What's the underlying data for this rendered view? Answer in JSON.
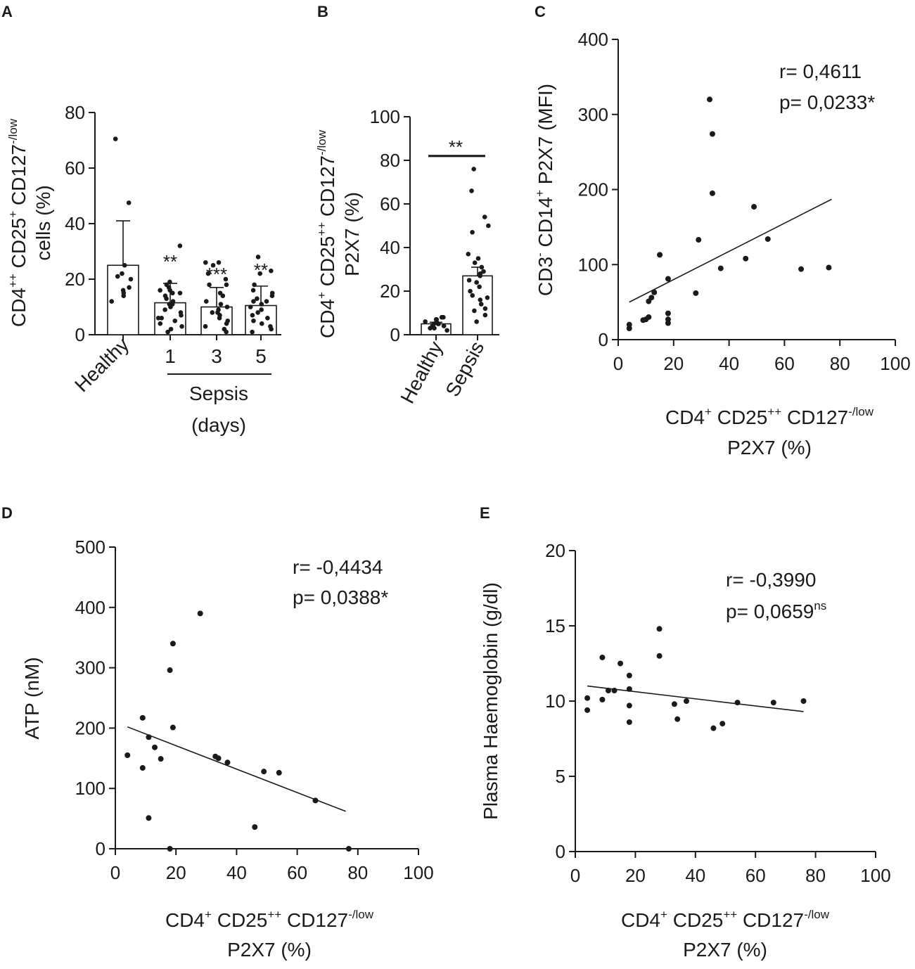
{
  "figure": {
    "panels": {
      "A": {
        "letter": "A",
        "ylabel_line1": "CD4++ CD25+ CD127-/low",
        "ylabel_line2": "cells (%)",
        "ylabel_line1_parts": [
          [
            "CD4",
            ""
          ],
          [
            "++",
            "sup"
          ],
          [
            " CD25",
            ""
          ],
          [
            "+",
            "sup"
          ],
          [
            " CD127",
            ""
          ],
          [
            "-/low",
            "sup"
          ]
        ],
        "yticks": [
          "0",
          "20",
          "40",
          "60",
          "80"
        ],
        "group_label": "Sepsis",
        "group_label2": "(days)"
      },
      "B": {
        "letter": "B",
        "ylabel_line1": "CD4+ CD25++ CD127-/low",
        "ylabel_line2": "P2X7 (%)",
        "ylabel_line1_parts": [
          [
            "CD4",
            ""
          ],
          [
            "+",
            "sup"
          ],
          [
            " CD25",
            ""
          ],
          [
            "++",
            "sup"
          ],
          [
            " CD127",
            ""
          ],
          [
            "-/low",
            "sup"
          ]
        ],
        "yticks": [
          "0",
          "20",
          "40",
          "60",
          "80",
          "100"
        ]
      },
      "C": {
        "letter": "C",
        "ylabel": "CD3- CD14+ P2X7 (MFI)",
        "ylabel_parts": [
          [
            "CD3",
            ""
          ],
          [
            "-",
            "sup"
          ],
          [
            " CD14",
            ""
          ],
          [
            "+",
            "sup"
          ],
          [
            " P2X7 (MFI)",
            ""
          ]
        ],
        "xlabel_line1": "CD4+ CD25++ CD127-/low",
        "xlabel_line2": "P2X7 (%)",
        "r_text": "r= 0,4611",
        "p_text": "p= 0,0233*",
        "xticks": [
          "0",
          "20",
          "40",
          "60",
          "80",
          "100"
        ],
        "yticks": [
          "0",
          "100",
          "200",
          "300",
          "400"
        ]
      },
      "D": {
        "letter": "D",
        "ylabel": "ATP (nM)",
        "xlabel_line1": "CD4+ CD25++ CD127-/low",
        "xlabel_line2": "P2X7 (%)",
        "r_text": "r= -0,4434",
        "p_text": "p= 0,0388*",
        "xticks": [
          "0",
          "20",
          "40",
          "60",
          "80",
          "100"
        ],
        "yticks": [
          "0",
          "100",
          "200",
          "300",
          "400",
          "500"
        ]
      },
      "E": {
        "letter": "E",
        "ylabel": "Plasma Haemoglobin (g/dl)",
        "xlabel_line1": "CD4+ CD25++ CD127-/low",
        "xlabel_line2": "P2X7 (%)",
        "r_text": "r= -0,3990",
        "p_text_main": "p= 0,0659",
        "p_text_sup": "ns",
        "xticks": [
          "0",
          "20",
          "40",
          "60",
          "80",
          "100"
        ],
        "yticks": [
          "0",
          "5",
          "10",
          "15",
          "20"
        ]
      }
    }
  },
  "chart_data": [
    {
      "id": "A",
      "type": "bar",
      "title": "",
      "ylabel": "CD4++ CD25+ CD127-/low cells (%)",
      "xlabel": "Sepsis (days)",
      "ylim": [
        0,
        80
      ],
      "categories": [
        "Healthy",
        "1",
        "3",
        "5"
      ],
      "values": [
        25,
        11.5,
        10,
        10.5
      ],
      "error_sd": [
        16,
        7,
        7,
        7
      ],
      "significance": [
        "",
        "**",
        "***",
        "**"
      ],
      "points": [
        [
          70.5,
          47.5,
          25,
          22,
          21,
          20,
          17,
          16,
          15,
          14,
          12
        ],
        [
          32,
          19,
          18,
          16,
          16,
          15,
          14,
          13,
          12,
          11,
          10,
          9,
          8,
          7,
          6,
          5,
          4,
          3,
          2,
          1,
          15,
          17,
          11,
          6
        ],
        [
          26,
          26,
          25,
          20,
          18,
          18,
          15,
          14,
          12,
          11,
          10,
          9,
          8,
          7,
          6,
          5,
          4,
          3,
          2,
          1,
          8,
          22
        ],
        [
          28,
          23,
          22,
          18,
          16,
          15,
          13,
          12,
          11,
          10,
          9,
          8,
          7,
          6,
          5,
          4,
          3,
          2,
          1,
          14,
          12
        ]
      ]
    },
    {
      "id": "B",
      "type": "bar",
      "title": "",
      "ylabel": "CD4+ CD25++ CD127-/low P2X7 (%)",
      "ylim": [
        0,
        100
      ],
      "categories": [
        "Healthy",
        "Sepsis"
      ],
      "values": [
        5,
        27
      ],
      "error_sem": [
        0.7,
        4
      ],
      "significance_bracket": "**",
      "significance_bracket_y": 82,
      "points": [
        [
          8,
          8,
          7,
          7,
          6,
          6,
          5,
          5,
          5,
          4,
          4,
          3,
          3,
          2
        ],
        [
          76,
          66,
          54,
          50,
          47,
          37,
          35,
          33,
          31,
          29,
          28,
          27,
          25,
          24,
          22,
          20,
          18,
          17,
          16,
          14,
          12,
          11,
          9,
          6
        ]
      ]
    },
    {
      "id": "C",
      "type": "scatter",
      "title": "",
      "xlabel": "CD4+ CD25++ CD127-/low P2X7 (%)",
      "ylabel": "CD3- CD14+ P2X7 (MFI)",
      "xlim": [
        0,
        100
      ],
      "ylim": [
        0,
        400
      ],
      "x": [
        4,
        4,
        9,
        10,
        11,
        11,
        12,
        13,
        15,
        18,
        18,
        18,
        18,
        28,
        29,
        33,
        34,
        34,
        37,
        46,
        49,
        54,
        66,
        76
      ],
      "y": [
        15,
        20,
        26,
        27,
        51,
        30,
        56,
        63,
        113,
        81,
        35,
        27,
        22,
        62,
        133,
        320,
        274,
        195,
        95,
        108,
        177,
        134,
        94,
        96
      ],
      "fit_line": {
        "x": [
          4,
          77
        ],
        "y": [
          50,
          187
        ]
      },
      "r": "0,4611",
      "p": "0,0233*"
    },
    {
      "id": "D",
      "type": "scatter",
      "title": "",
      "xlabel": "CD4+ CD25++ CD127-/low P2X7 (%)",
      "ylabel": "ATP (nM)",
      "xlim": [
        0,
        100
      ],
      "ylim": [
        0,
        500
      ],
      "x": [
        4,
        9,
        9,
        11,
        11,
        13,
        15,
        18,
        18,
        19,
        19,
        28,
        33,
        34,
        37,
        46,
        49,
        54,
        66,
        77
      ],
      "y": [
        155,
        217,
        134,
        185,
        51,
        168,
        149,
        0,
        296,
        340,
        201,
        390,
        153,
        150,
        143,
        36,
        128,
        126,
        80,
        0
      ],
      "fit_line": {
        "x": [
          4,
          76
        ],
        "y": [
          202,
          62
        ]
      },
      "r": "-0,4434",
      "p": "0,0388*"
    },
    {
      "id": "E",
      "type": "scatter",
      "title": "",
      "xlabel": "CD4+ CD25++ CD127-/low P2X7 (%)",
      "ylabel": "Plasma Haemoglobin (g/dl)",
      "xlim": [
        0,
        100
      ],
      "ylim": [
        0,
        20
      ],
      "x": [
        4,
        4,
        9,
        9,
        11,
        13,
        15,
        18,
        18,
        18,
        18,
        28,
        28,
        33,
        34,
        37,
        46,
        49,
        54,
        66,
        76
      ],
      "y": [
        9.4,
        10.2,
        12.9,
        10.1,
        10.7,
        10.7,
        12.5,
        11.7,
        10.8,
        9.7,
        8.6,
        14.8,
        13.0,
        9.8,
        8.8,
        10.0,
        8.2,
        8.5,
        9.9,
        9.9,
        10.0
      ],
      "fit_line": {
        "x": [
          4,
          76
        ],
        "y": [
          11.0,
          9.3
        ]
      },
      "r": "-0,3990",
      "p": "0,0659ns"
    }
  ]
}
